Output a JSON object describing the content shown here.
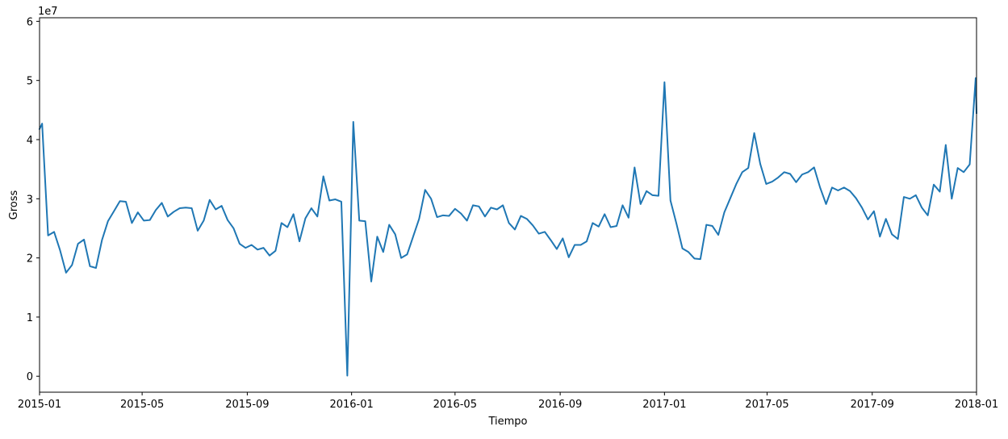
{
  "chart_data": {
    "type": "line",
    "title": "",
    "xlabel": "Tiempo",
    "ylabel": "Gross",
    "y_offset_text": "1e7",
    "xlim": [
      "2015-01-01",
      "2018-01-01"
    ],
    "ylim": [
      -2.7,
      60.6
    ],
    "y_scale_exponent": 7,
    "grid": false,
    "line_color": "#1f77b4",
    "x_ticks": [
      {
        "date": "2015-01-01",
        "label": "2015-01"
      },
      {
        "date": "2015-05-01",
        "label": "2015-05"
      },
      {
        "date": "2015-09-01",
        "label": "2015-09"
      },
      {
        "date": "2016-01-01",
        "label": "2016-01"
      },
      {
        "date": "2016-05-01",
        "label": "2016-05"
      },
      {
        "date": "2016-09-01",
        "label": "2016-09"
      },
      {
        "date": "2017-01-01",
        "label": "2017-01"
      },
      {
        "date": "2017-05-01",
        "label": "2017-05"
      },
      {
        "date": "2017-09-01",
        "label": "2017-09"
      },
      {
        "date": "2018-01-01",
        "label": "2018-01"
      }
    ],
    "y_ticks": [
      {
        "value": 0,
        "label": "0"
      },
      {
        "value": 10,
        "label": "1"
      },
      {
        "value": 20,
        "label": "2"
      },
      {
        "value": 30,
        "label": "3"
      },
      {
        "value": 40,
        "label": "4"
      },
      {
        "value": 50,
        "label": "5"
      },
      {
        "value": 60,
        "label": "6"
      }
    ],
    "series": [
      {
        "x": [
          "2015-01-01",
          "2015-01-04",
          "2015-01-11",
          "2015-01-18",
          "2015-01-25",
          "2015-02-01",
          "2015-02-08",
          "2015-02-15",
          "2015-02-22",
          "2015-03-01",
          "2015-03-08",
          "2015-03-15",
          "2015-03-22",
          "2015-03-29",
          "2015-04-05",
          "2015-04-12",
          "2015-04-19",
          "2015-04-26",
          "2015-05-03",
          "2015-05-10",
          "2015-05-17",
          "2015-05-24",
          "2015-05-31",
          "2015-06-07",
          "2015-06-14",
          "2015-06-21",
          "2015-06-28",
          "2015-07-05",
          "2015-07-12",
          "2015-07-19",
          "2015-07-26",
          "2015-08-02",
          "2015-08-09",
          "2015-08-16",
          "2015-08-23",
          "2015-08-30",
          "2015-09-06",
          "2015-09-13",
          "2015-09-20",
          "2015-09-27",
          "2015-10-04",
          "2015-10-11",
          "2015-10-18",
          "2015-10-25",
          "2015-11-01",
          "2015-11-08",
          "2015-11-15",
          "2015-11-22",
          "2015-11-29",
          "2015-12-06",
          "2015-12-13",
          "2015-12-20",
          "2015-12-27",
          "2016-01-03",
          "2016-01-10",
          "2016-01-17",
          "2016-01-24",
          "2016-01-31",
          "2016-02-07",
          "2016-02-14",
          "2016-02-21",
          "2016-02-28",
          "2016-03-06",
          "2016-03-13",
          "2016-03-20",
          "2016-03-27",
          "2016-04-03",
          "2016-04-10",
          "2016-04-17",
          "2016-04-24",
          "2016-05-01",
          "2016-05-08",
          "2016-05-15",
          "2016-05-22",
          "2016-05-29",
          "2016-06-05",
          "2016-06-12",
          "2016-06-19",
          "2016-06-26",
          "2016-07-03",
          "2016-07-10",
          "2016-07-17",
          "2016-07-24",
          "2016-07-31",
          "2016-08-07",
          "2016-08-14",
          "2016-08-21",
          "2016-08-28",
          "2016-09-04",
          "2016-09-11",
          "2016-09-18",
          "2016-09-25",
          "2016-10-02",
          "2016-10-09",
          "2016-10-16",
          "2016-10-23",
          "2016-10-30",
          "2016-11-06",
          "2016-11-13",
          "2016-11-20",
          "2016-11-27",
          "2016-12-04",
          "2016-12-11",
          "2016-12-18",
          "2016-12-25",
          "2017-01-01",
          "2017-01-08",
          "2017-01-15",
          "2017-01-22",
          "2017-01-29",
          "2017-02-05",
          "2017-02-12",
          "2017-02-19",
          "2017-02-26",
          "2017-03-05",
          "2017-03-12",
          "2017-03-19",
          "2017-03-26",
          "2017-04-02",
          "2017-04-09",
          "2017-04-16",
          "2017-04-23",
          "2017-04-30",
          "2017-05-07",
          "2017-05-14",
          "2017-05-21",
          "2017-05-28",
          "2017-06-04",
          "2017-06-11",
          "2017-06-18",
          "2017-06-25",
          "2017-07-02",
          "2017-07-09",
          "2017-07-16",
          "2017-07-23",
          "2017-07-30",
          "2017-08-06",
          "2017-08-13",
          "2017-08-20",
          "2017-08-27",
          "2017-09-03",
          "2017-09-10",
          "2017-09-17",
          "2017-09-24",
          "2017-10-01",
          "2017-10-08",
          "2017-10-15",
          "2017-10-22",
          "2017-10-29",
          "2017-11-05",
          "2017-11-12",
          "2017-11-19",
          "2017-11-26",
          "2017-12-03",
          "2017-12-10",
          "2017-12-17",
          "2017-12-24",
          "2017-12-31",
          "2018-01-01"
        ],
        "values": [
          41.8,
          42.7,
          23.8,
          24.4,
          21.3,
          17.5,
          18.8,
          22.4,
          23.1,
          18.6,
          18.3,
          23.0,
          26.2,
          27.9,
          29.6,
          29.5,
          25.9,
          27.7,
          26.3,
          26.4,
          28.1,
          29.3,
          27.0,
          27.8,
          28.4,
          28.5,
          28.4,
          24.6,
          26.3,
          29.8,
          28.2,
          28.8,
          26.4,
          25.0,
          22.4,
          21.7,
          22.2,
          21.4,
          21.7,
          20.4,
          21.2,
          25.9,
          25.2,
          27.4,
          22.8,
          26.7,
          28.4,
          27.0,
          33.8,
          29.7,
          29.9,
          29.5,
          0.1,
          43.0,
          26.3,
          26.2,
          16.0,
          23.6,
          21.0,
          25.6,
          24.0,
          20.0,
          20.6,
          23.6,
          26.6,
          31.5,
          30.0,
          26.9,
          27.2,
          27.1,
          28.3,
          27.5,
          26.3,
          28.9,
          28.7,
          27.0,
          28.5,
          28.2,
          28.9,
          25.9,
          24.8,
          27.1,
          26.6,
          25.5,
          24.1,
          24.4,
          23.0,
          21.5,
          23.3,
          20.1,
          22.2,
          22.2,
          22.8,
          25.9,
          25.3,
          27.4,
          25.2,
          25.4,
          28.9,
          26.8,
          35.3,
          29.1,
          31.3,
          30.6,
          30.5,
          49.7,
          29.7,
          25.8,
          21.6,
          21.0,
          19.9,
          19.8,
          25.6,
          25.4,
          23.9,
          27.7,
          30.1,
          32.5,
          34.5,
          35.2,
          41.1,
          35.9,
          32.5,
          32.9,
          33.6,
          34.5,
          34.2,
          32.8,
          34.1,
          34.5,
          35.3,
          31.9,
          29.1,
          31.9,
          31.4,
          31.9,
          31.3,
          30.1,
          28.5,
          26.5,
          27.9,
          23.6,
          26.6,
          24.0,
          23.2,
          30.3,
          30.0,
          30.6,
          28.5,
          27.2,
          32.4,
          31.2,
          39.1,
          30.0,
          35.2,
          34.5,
          35.8,
          50.4,
          44.5
        ]
      }
    ]
  }
}
